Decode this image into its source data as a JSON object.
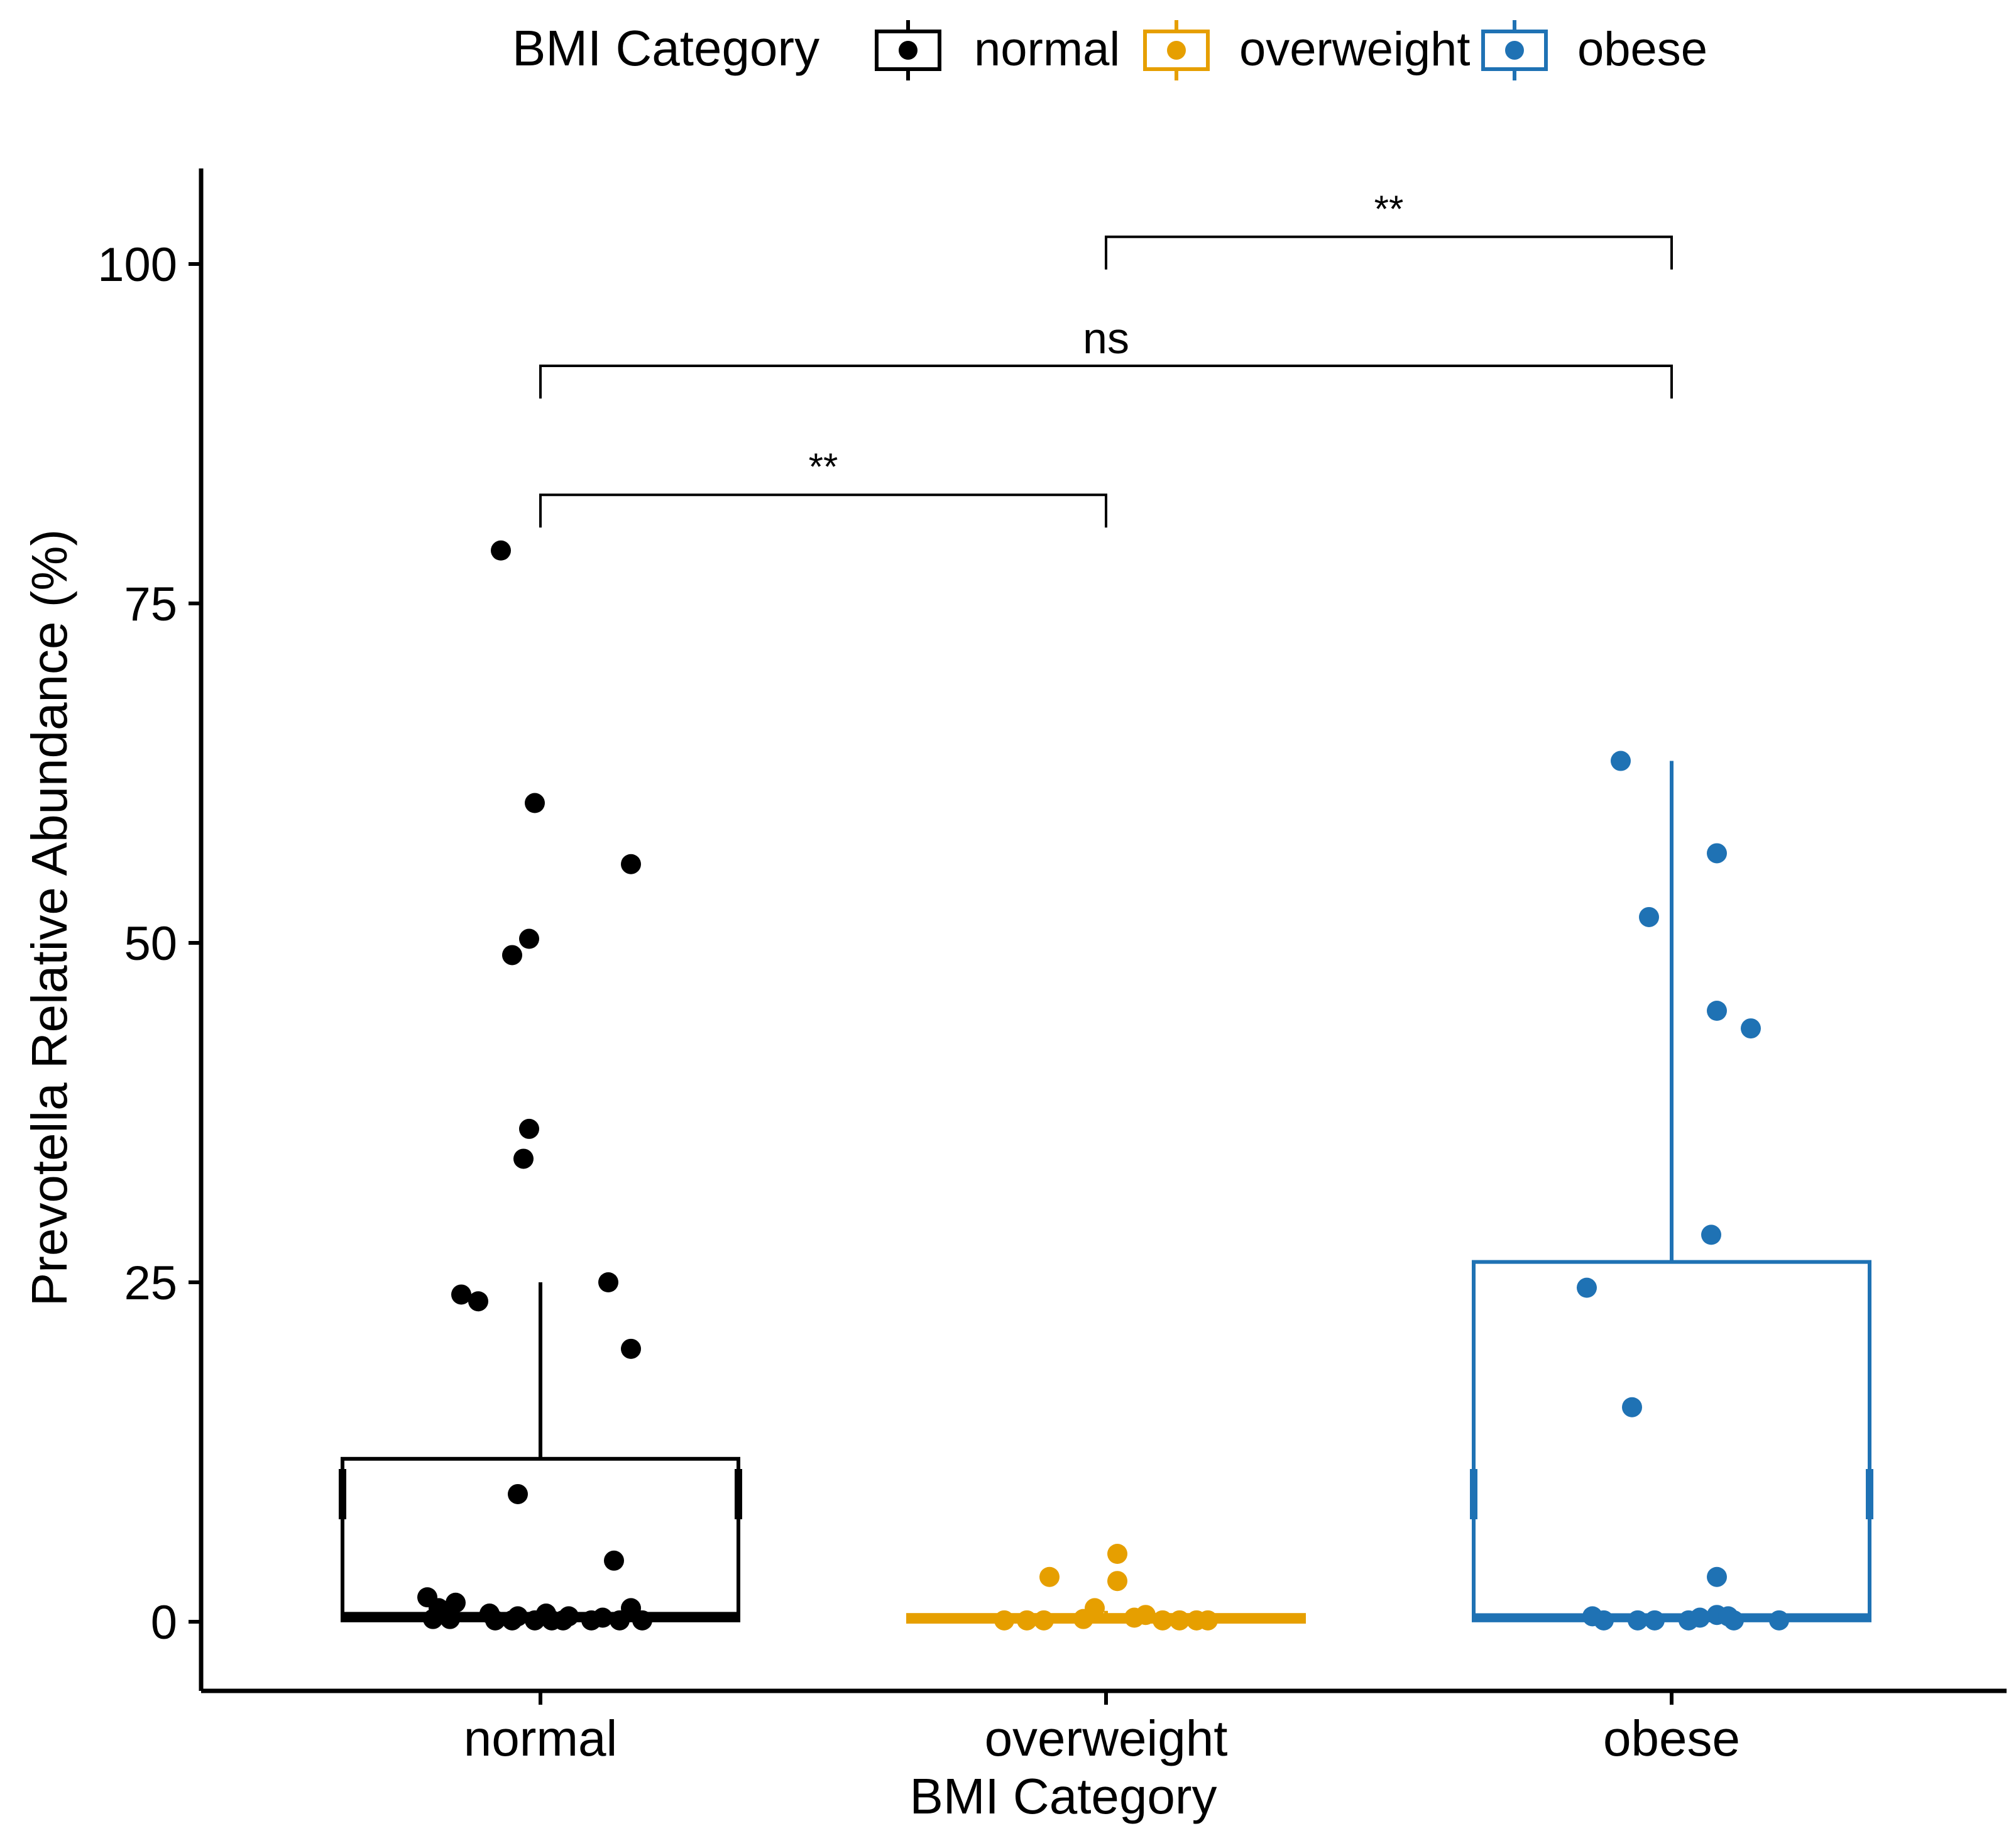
{
  "chart_data": {
    "type": "box",
    "xlabel": "BMI Category",
    "ylabel": "Prevotella Relative Abundance (%)",
    "ylim": [
      -5,
      107
    ],
    "yticks": [
      0,
      25,
      50,
      75,
      100
    ],
    "categories": [
      "normal",
      "overweight",
      "obese"
    ],
    "legend": {
      "title": "BMI Category",
      "placement": "top",
      "entries": [
        {
          "label": "normal",
          "color": "#000000"
        },
        {
          "label": "overweight",
          "color": "#E69F00"
        },
        {
          "label": "obese",
          "color": "#1F72B4"
        }
      ]
    },
    "series": [
      {
        "name": "normal",
        "color": "#000000",
        "box": {
          "q1": 0.1,
          "median": 0.4,
          "q3": 12.0,
          "whisker_low": 0.0,
          "whisker_high": 25.0,
          "mean": 9.4
        },
        "points": [
          {
            "x": -0.07,
            "y": 78.9
          },
          {
            "x": -0.01,
            "y": 60.3
          },
          {
            "x": 0.16,
            "y": 55.8
          },
          {
            "x": -0.02,
            "y": 50.3
          },
          {
            "x": -0.05,
            "y": 49.1
          },
          {
            "x": -0.02,
            "y": 36.3
          },
          {
            "x": -0.03,
            "y": 34.1
          },
          {
            "x": 0.12,
            "y": 25.0
          },
          {
            "x": -0.14,
            "y": 24.1
          },
          {
            "x": -0.11,
            "y": 23.6
          },
          {
            "x": 0.16,
            "y": 20.1
          },
          {
            "x": -0.04,
            "y": 9.4
          },
          {
            "x": 0.13,
            "y": 4.5
          },
          {
            "x": -0.2,
            "y": 1.8
          },
          {
            "x": -0.15,
            "y": 1.4
          },
          {
            "x": -0.18,
            "y": 1.0
          },
          {
            "x": 0.16,
            "y": 1.0
          },
          {
            "x": -0.09,
            "y": 0.6
          },
          {
            "x": 0.01,
            "y": 0.6
          },
          {
            "x": -0.04,
            "y": 0.4
          },
          {
            "x": 0.05,
            "y": 0.4
          },
          {
            "x": 0.11,
            "y": 0.3
          },
          {
            "x": -0.19,
            "y": 0.2
          },
          {
            "x": -0.16,
            "y": 0.2
          },
          {
            "x": -0.08,
            "y": 0.1
          },
          {
            "x": -0.05,
            "y": 0.1
          },
          {
            "x": -0.01,
            "y": 0.1
          },
          {
            "x": 0.02,
            "y": 0.1
          },
          {
            "x": 0.04,
            "y": 0.1
          },
          {
            "x": 0.09,
            "y": 0.1
          },
          {
            "x": 0.14,
            "y": 0.1
          },
          {
            "x": 0.18,
            "y": 0.1
          }
        ]
      },
      {
        "name": "overweight",
        "color": "#E69F00",
        "box": {
          "q1": 0.0,
          "median": 0.2,
          "q3": 0.5,
          "whisker_low": 0.0,
          "whisker_high": 0.8,
          "mean": 0.5
        },
        "points": [
          {
            "x": 0.02,
            "y": 5.0
          },
          {
            "x": -0.1,
            "y": 3.3
          },
          {
            "x": 0.02,
            "y": 3.0
          },
          {
            "x": -0.02,
            "y": 1.0
          },
          {
            "x": 0.07,
            "y": 0.5
          },
          {
            "x": 0.05,
            "y": 0.3
          },
          {
            "x": -0.18,
            "y": 0.1
          },
          {
            "x": -0.14,
            "y": 0.1
          },
          {
            "x": -0.11,
            "y": 0.1
          },
          {
            "x": -0.04,
            "y": 0.2
          },
          {
            "x": 0.1,
            "y": 0.1
          },
          {
            "x": 0.13,
            "y": 0.1
          },
          {
            "x": 0.16,
            "y": 0.1
          },
          {
            "x": 0.18,
            "y": 0.1
          }
        ]
      },
      {
        "name": "obese",
        "color": "#1F72B4",
        "box": {
          "q1": 0.1,
          "median": 0.3,
          "q3": 26.5,
          "whisker_low": 0.0,
          "whisker_high": 63.4,
          "mean": 9.4
        },
        "points": [
          {
            "x": -0.09,
            "y": 63.4
          },
          {
            "x": 0.08,
            "y": 56.6
          },
          {
            "x": -0.04,
            "y": 51.9
          },
          {
            "x": 0.08,
            "y": 45.0
          },
          {
            "x": 0.14,
            "y": 43.7
          },
          {
            "x": 0.07,
            "y": 28.5
          },
          {
            "x": -0.15,
            "y": 24.6
          },
          {
            "x": -0.07,
            "y": 15.8
          },
          {
            "x": 0.08,
            "y": 3.3
          },
          {
            "x": -0.14,
            "y": 0.4
          },
          {
            "x": 0.08,
            "y": 0.5
          },
          {
            "x": 0.1,
            "y": 0.4
          },
          {
            "x": 0.05,
            "y": 0.3
          },
          {
            "x": -0.12,
            "y": 0.1
          },
          {
            "x": -0.06,
            "y": 0.1
          },
          {
            "x": -0.03,
            "y": 0.1
          },
          {
            "x": 0.03,
            "y": 0.1
          },
          {
            "x": 0.11,
            "y": 0.1
          },
          {
            "x": 0.19,
            "y": 0.1
          }
        ]
      }
    ],
    "comparisons": [
      {
        "from": "normal",
        "to": "overweight",
        "label": "**",
        "y": 83
      },
      {
        "from": "normal",
        "to": "obese",
        "label": "ns",
        "y": 92.5
      },
      {
        "from": "overweight",
        "to": "obese",
        "label": "**",
        "y": 102
      }
    ]
  }
}
